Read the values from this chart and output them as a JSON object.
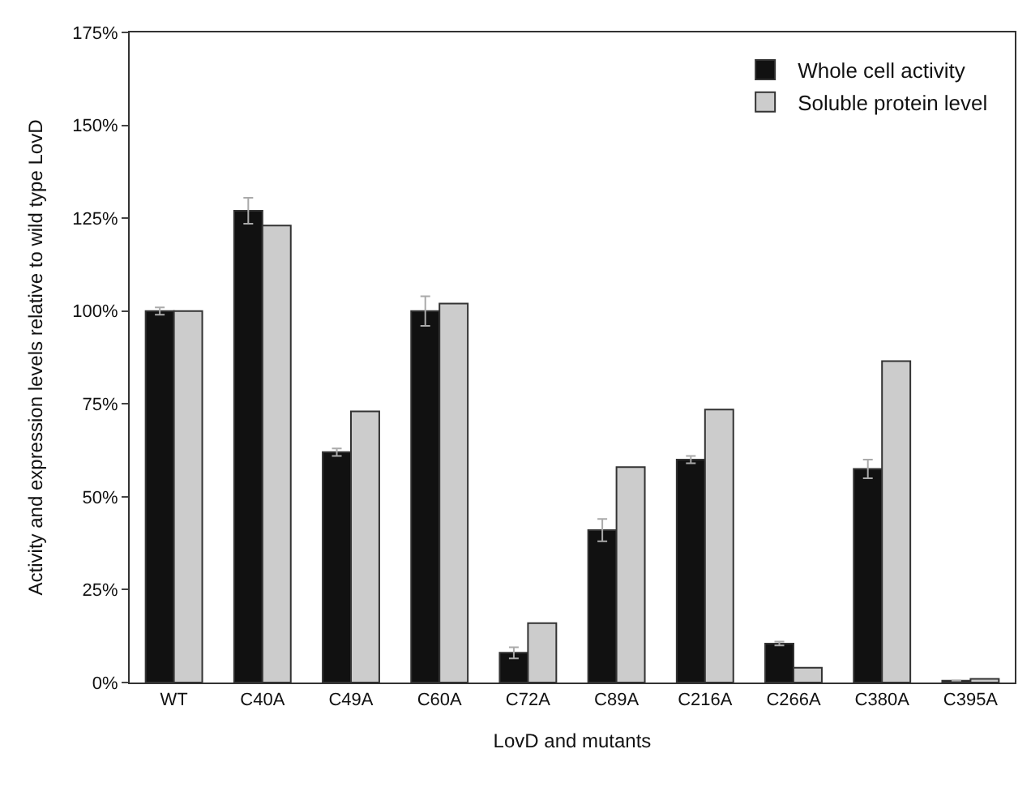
{
  "chart_data": {
    "type": "bar",
    "xlabel": "LovD and mutants",
    "ylabel": "Activity and expression levels relative to wild type LovD",
    "categories": [
      "WT",
      "C40A",
      "C49A",
      "C60A",
      "C72A",
      "C89A",
      "C216A",
      "C266A",
      "C380A",
      "C395A"
    ],
    "series": [
      {
        "name": "Whole cell activity",
        "color": "#111111",
        "values": [
          100,
          127,
          62,
          100,
          8,
          41,
          60,
          10.5,
          57.5,
          0.5
        ],
        "errors": [
          1,
          3.5,
          1,
          4,
          1.5,
          3,
          1,
          0.5,
          2.5,
          null
        ]
      },
      {
        "name": "Soluble protein level",
        "color": "#cccccc",
        "values": [
          100,
          123,
          73,
          102,
          16,
          58,
          73.5,
          4,
          86.5,
          1
        ]
      }
    ],
    "ylim": [
      0,
      175
    ],
    "yticks": [
      {
        "value": 0,
        "label": "0%"
      },
      {
        "value": 25,
        "label": "25%"
      },
      {
        "value": 50,
        "label": "50%"
      },
      {
        "value": 75,
        "label": "75%"
      },
      {
        "value": 100,
        "label": "100%"
      },
      {
        "value": 125,
        "label": "125%"
      },
      {
        "value": 150,
        "label": "150%"
      },
      {
        "value": 175,
        "label": "175%"
      }
    ],
    "legend": "top right"
  }
}
